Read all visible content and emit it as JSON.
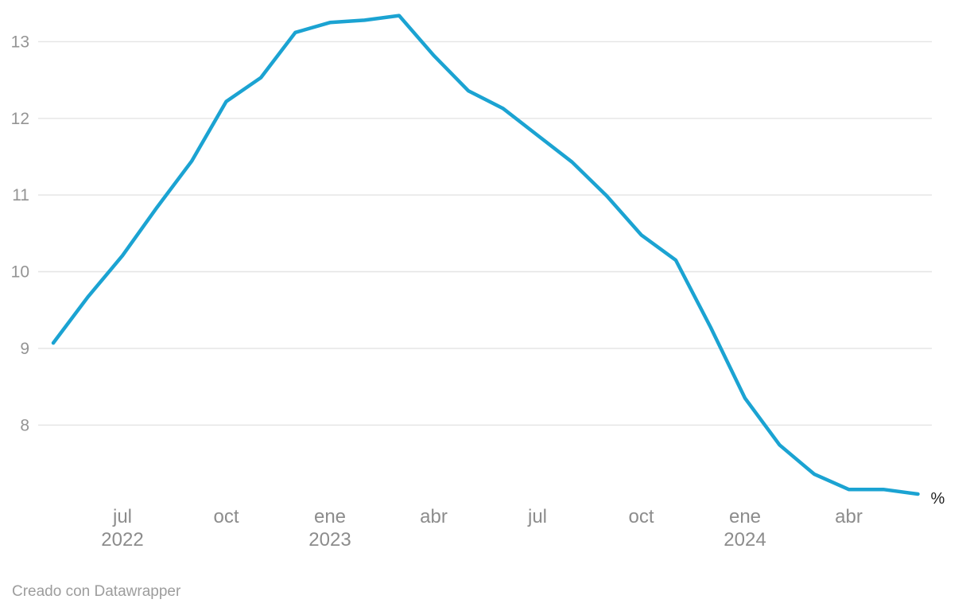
{
  "chart_data": {
    "type": "line",
    "title": "",
    "xlabel": "",
    "ylabel": "",
    "unit_label": "%",
    "categories": [
      "may 2022",
      "jun 2022",
      "jul 2022",
      "ago 2022",
      "sep 2022",
      "oct 2022",
      "nov 2022",
      "dic 2022",
      "ene 2023",
      "feb 2023",
      "mar 2023",
      "abr 2023",
      "may 2023",
      "jun 2023",
      "jul 2023",
      "ago 2023",
      "sep 2023",
      "oct 2023",
      "nov 2023",
      "dic 2023",
      "ene 2024",
      "feb 2024",
      "mar 2024",
      "abr 2024",
      "may 2024",
      "jun 2024"
    ],
    "series": [
      {
        "name": "%",
        "values": [
          9.07,
          9.67,
          10.21,
          10.84,
          11.44,
          12.22,
          12.53,
          13.12,
          13.25,
          13.28,
          13.34,
          12.82,
          12.36,
          12.13,
          11.78,
          11.43,
          10.99,
          10.48,
          10.15,
          9.28,
          8.35,
          7.74,
          7.36,
          7.16,
          7.16,
          7.1
        ]
      }
    ],
    "y_ticks": [
      13,
      12,
      11,
      10,
      9,
      8
    ],
    "x_ticks": [
      {
        "label": "jul",
        "year": "2022",
        "index": 2
      },
      {
        "label": "oct",
        "year": "",
        "index": 5
      },
      {
        "label": "ene",
        "year": "2023",
        "index": 8
      },
      {
        "label": "abr",
        "year": "",
        "index": 11
      },
      {
        "label": "jul",
        "year": "",
        "index": 14
      },
      {
        "label": "oct",
        "year": "",
        "index": 17
      },
      {
        "label": "ene",
        "year": "2024",
        "index": 20
      },
      {
        "label": "abr",
        "year": "",
        "index": 23
      }
    ],
    "ylim": [
      7.0,
      13.5
    ],
    "grid": true,
    "legend_position": "line-end",
    "colors": {
      "line": "#1ba3d2",
      "grid": "#e4e4e4",
      "y_tick_text": "#949494",
      "x_tick_text": "#8c8c8c",
      "unit_label_text": "#1f1f1f",
      "background": "#ffffff"
    }
  },
  "footer": {
    "attribution": "Creado con Datawrapper"
  }
}
